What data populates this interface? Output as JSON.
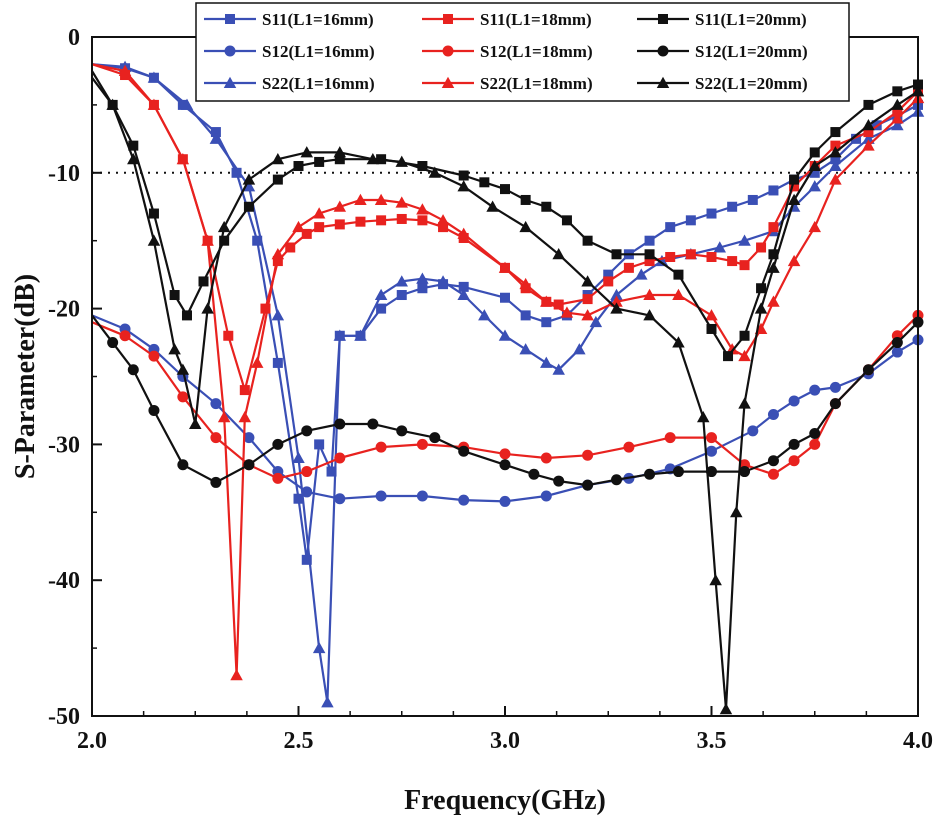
{
  "chart_data": {
    "type": "line",
    "xlabel": "Frequency(GHz)",
    "ylabel": "S-Parameter(dB)",
    "xlim": [
      2.0,
      4.0
    ],
    "ylim": [
      -50,
      0
    ],
    "xticks": [
      2.0,
      2.5,
      3.0,
      3.5,
      4.0
    ],
    "xtick_labels": [
      "2.0",
      "2.5",
      "3.0",
      "3.5",
      "4.0"
    ],
    "yticks": [
      0,
      -10,
      -20,
      -30,
      -40,
      -50
    ],
    "ytick_labels": [
      "0",
      "-10",
      "-20",
      "-30",
      "-40",
      "-50"
    ],
    "reference_line": {
      "y": -10,
      "style": "dotted"
    },
    "legend_position": "top-right",
    "grid": false,
    "colors": {
      "L1=16mm": "#3a4fb5",
      "L1=18mm": "#e8221f",
      "L1=20mm": "#111111"
    },
    "series": [
      {
        "name": "S11(L1=16mm)",
        "color": "#3a4fb5",
        "marker": "square",
        "x": [
          2.0,
          2.08,
          2.15,
          2.22,
          2.3,
          2.35,
          2.4,
          2.45,
          2.5,
          2.52,
          2.55,
          2.58,
          2.6,
          2.65,
          2.7,
          2.75,
          2.8,
          2.85,
          2.9,
          3.0,
          3.05,
          3.1,
          3.15,
          3.2,
          3.25,
          3.3,
          3.35,
          3.4,
          3.45,
          3.5,
          3.55,
          3.6,
          3.65,
          3.7,
          3.75,
          3.8,
          3.85,
          3.9,
          3.95,
          4.0
        ],
        "y": [
          -2,
          -2.3,
          -3,
          -5,
          -7,
          -10,
          -15,
          -24,
          -34,
          -38.5,
          -30,
          -32,
          -22,
          -22,
          -20,
          -19,
          -18.5,
          -18.2,
          -18.4,
          -19.2,
          -20.5,
          -21,
          -20.5,
          -19,
          -17.5,
          -16,
          -15,
          -14,
          -13.5,
          -13,
          -12.5,
          -12,
          -11.3,
          -10.5,
          -10,
          -9,
          -7.5,
          -6.5,
          -5.8,
          -5
        ]
      },
      {
        "name": "S12(L1=16mm)",
        "color": "#3a4fb5",
        "marker": "circle",
        "x": [
          2.0,
          2.08,
          2.15,
          2.22,
          2.3,
          2.38,
          2.45,
          2.52,
          2.6,
          2.7,
          2.8,
          2.9,
          3.0,
          3.1,
          3.2,
          3.3,
          3.4,
          3.5,
          3.6,
          3.65,
          3.7,
          3.75,
          3.8,
          3.88,
          3.95,
          4.0
        ],
        "y": [
          -20.5,
          -21.5,
          -23,
          -25,
          -27,
          -29.5,
          -32,
          -33.5,
          -34,
          -33.8,
          -33.8,
          -34.1,
          -34.2,
          -33.8,
          -33,
          -32.5,
          -31.8,
          -30.5,
          -29,
          -27.8,
          -26.8,
          -26,
          -25.8,
          -24.8,
          -23.2,
          -22.3
        ]
      },
      {
        "name": "S22(L1=16mm)",
        "color": "#3a4fb5",
        "marker": "triangle",
        "x": [
          2.0,
          2.08,
          2.15,
          2.23,
          2.3,
          2.38,
          2.45,
          2.5,
          2.55,
          2.57,
          2.6,
          2.65,
          2.7,
          2.75,
          2.8,
          2.85,
          2.9,
          2.95,
          3.0,
          3.05,
          3.1,
          3.13,
          3.18,
          3.22,
          3.27,
          3.33,
          3.38,
          3.45,
          3.52,
          3.58,
          3.65,
          3.7,
          3.75,
          3.8,
          3.88,
          3.95,
          4.0
        ],
        "y": [
          -2,
          -2.2,
          -3,
          -5,
          -7.5,
          -11,
          -20.5,
          -31,
          -45,
          -49,
          -22,
          -22,
          -19,
          -18,
          -17.8,
          -18,
          -19,
          -20.5,
          -22,
          -23,
          -24,
          -24.5,
          -23,
          -21,
          -19,
          -17.5,
          -16.5,
          -16,
          -15.5,
          -15,
          -14.3,
          -12.5,
          -11,
          -9.5,
          -7.5,
          -6.5,
          -5.5
        ]
      },
      {
        "name": "S11(L1=18mm)",
        "color": "#e8221f",
        "marker": "square",
        "x": [
          2.0,
          2.08,
          2.15,
          2.22,
          2.28,
          2.33,
          2.37,
          2.42,
          2.45,
          2.48,
          2.52,
          2.55,
          2.6,
          2.65,
          2.7,
          2.75,
          2.8,
          2.85,
          2.9,
          3.0,
          3.05,
          3.1,
          3.13,
          3.2,
          3.25,
          3.3,
          3.35,
          3.4,
          3.45,
          3.5,
          3.55,
          3.58,
          3.62,
          3.65,
          3.7,
          3.75,
          3.8,
          3.88,
          3.95,
          4.0
        ],
        "y": [
          -2,
          -2.8,
          -5,
          -9,
          -15,
          -22,
          -26,
          -20,
          -16.5,
          -15.5,
          -14.5,
          -14,
          -13.8,
          -13.6,
          -13.5,
          -13.4,
          -13.5,
          -14,
          -14.8,
          -17,
          -18.5,
          -19.5,
          -19.7,
          -19.3,
          -18,
          -17,
          -16.5,
          -16.2,
          -16,
          -16.2,
          -16.5,
          -16.8,
          -15.5,
          -14,
          -11,
          -9.5,
          -8,
          -7,
          -5.5,
          -4
        ]
      },
      {
        "name": "S12(L1=18mm)",
        "color": "#e8221f",
        "marker": "circle",
        "x": [
          2.0,
          2.08,
          2.15,
          2.22,
          2.3,
          2.38,
          2.45,
          2.52,
          2.6,
          2.7,
          2.8,
          2.9,
          3.0,
          3.1,
          3.2,
          3.3,
          3.4,
          3.5,
          3.58,
          3.65,
          3.7,
          3.75,
          3.8,
          3.88,
          3.95,
          4.0
        ],
        "y": [
          -21,
          -22,
          -23.5,
          -26.5,
          -29.5,
          -31.5,
          -32.5,
          -32,
          -31,
          -30.2,
          -30,
          -30.2,
          -30.7,
          -31,
          -30.8,
          -30.2,
          -29.5,
          -29.5,
          -31.5,
          -32.2,
          -31.2,
          -30,
          -27,
          -24.5,
          -22,
          -20.5
        ]
      },
      {
        "name": "S22(L1=18mm)",
        "color": "#e8221f",
        "marker": "triangle",
        "x": [
          2.0,
          2.08,
          2.15,
          2.22,
          2.28,
          2.32,
          2.35,
          2.37,
          2.4,
          2.45,
          2.5,
          2.55,
          2.6,
          2.65,
          2.7,
          2.75,
          2.8,
          2.85,
          2.9,
          3.0,
          3.05,
          3.1,
          3.15,
          3.2,
          3.27,
          3.35,
          3.42,
          3.5,
          3.55,
          3.58,
          3.62,
          3.65,
          3.7,
          3.75,
          3.8,
          3.88,
          3.95,
          4.0
        ],
        "y": [
          -2,
          -2.5,
          -5,
          -9,
          -15,
          -28,
          -47,
          -28,
          -24,
          -16,
          -14,
          -13,
          -12.5,
          -12,
          -12,
          -12.2,
          -12.7,
          -13.5,
          -14.5,
          -17,
          -18.2,
          -19.5,
          -20.3,
          -20.5,
          -19.5,
          -19,
          -19,
          -20.5,
          -23,
          -23.5,
          -21.5,
          -19.5,
          -16.5,
          -14,
          -10.5,
          -8,
          -6,
          -4.5
        ]
      },
      {
        "name": "S11(L1=20mm)",
        "color": "#111111",
        "marker": "square",
        "x": [
          2.0,
          2.05,
          2.1,
          2.15,
          2.2,
          2.23,
          2.27,
          2.32,
          2.38,
          2.45,
          2.5,
          2.55,
          2.6,
          2.7,
          2.8,
          2.9,
          2.95,
          3.0,
          3.05,
          3.1,
          3.15,
          3.2,
          3.27,
          3.35,
          3.42,
          3.5,
          3.54,
          3.58,
          3.62,
          3.65,
          3.7,
          3.75,
          3.8,
          3.88,
          3.95,
          4.0
        ],
        "y": [
          -3,
          -5,
          -8,
          -13,
          -19,
          -20.5,
          -18,
          -15,
          -12.5,
          -10.5,
          -9.5,
          -9.2,
          -9,
          -9,
          -9.5,
          -10.2,
          -10.7,
          -11.2,
          -12,
          -12.5,
          -13.5,
          -15,
          -16,
          -16,
          -17.5,
          -21.5,
          -23.5,
          -22,
          -18.5,
          -16,
          -10.5,
          -8.5,
          -7,
          -5,
          -4,
          -3.5
        ]
      },
      {
        "name": "S12(L1=20mm)",
        "color": "#111111",
        "marker": "circle",
        "x": [
          2.0,
          2.05,
          2.1,
          2.15,
          2.22,
          2.3,
          2.38,
          2.45,
          2.52,
          2.6,
          2.68,
          2.75,
          2.83,
          2.9,
          3.0,
          3.07,
          3.13,
          3.2,
          3.27,
          3.35,
          3.42,
          3.5,
          3.58,
          3.65,
          3.7,
          3.75,
          3.8,
          3.88,
          3.95,
          4.0
        ],
        "y": [
          -20.5,
          -22.5,
          -24.5,
          -27.5,
          -31.5,
          -32.8,
          -31.5,
          -30,
          -29,
          -28.5,
          -28.5,
          -29,
          -29.5,
          -30.5,
          -31.5,
          -32.2,
          -32.7,
          -33,
          -32.6,
          -32.2,
          -32,
          -32,
          -32,
          -31.2,
          -30,
          -29.2,
          -27,
          -24.5,
          -22.5,
          -21
        ]
      },
      {
        "name": "S22(L1=20mm)",
        "color": "#111111",
        "marker": "triangle",
        "x": [
          2.0,
          2.05,
          2.1,
          2.15,
          2.2,
          2.22,
          2.25,
          2.28,
          2.32,
          2.38,
          2.45,
          2.52,
          2.6,
          2.68,
          2.75,
          2.83,
          2.9,
          2.97,
          3.05,
          3.13,
          3.2,
          3.27,
          3.35,
          3.42,
          3.48,
          3.51,
          3.535,
          3.56,
          3.58,
          3.62,
          3.65,
          3.7,
          3.75,
          3.8,
          3.88,
          3.95,
          4.0
        ],
        "y": [
          -2.5,
          -5,
          -9,
          -15,
          -23,
          -24.5,
          -28.5,
          -20,
          -14,
          -10.5,
          -9,
          -8.5,
          -8.5,
          -9,
          -9.2,
          -10,
          -11,
          -12.5,
          -14,
          -16,
          -18,
          -20,
          -20.5,
          -22.5,
          -28,
          -40,
          -49.5,
          -35,
          -27,
          -20,
          -17,
          -12,
          -9.5,
          -8.5,
          -6.5,
          -5,
          -4
        ]
      }
    ]
  }
}
